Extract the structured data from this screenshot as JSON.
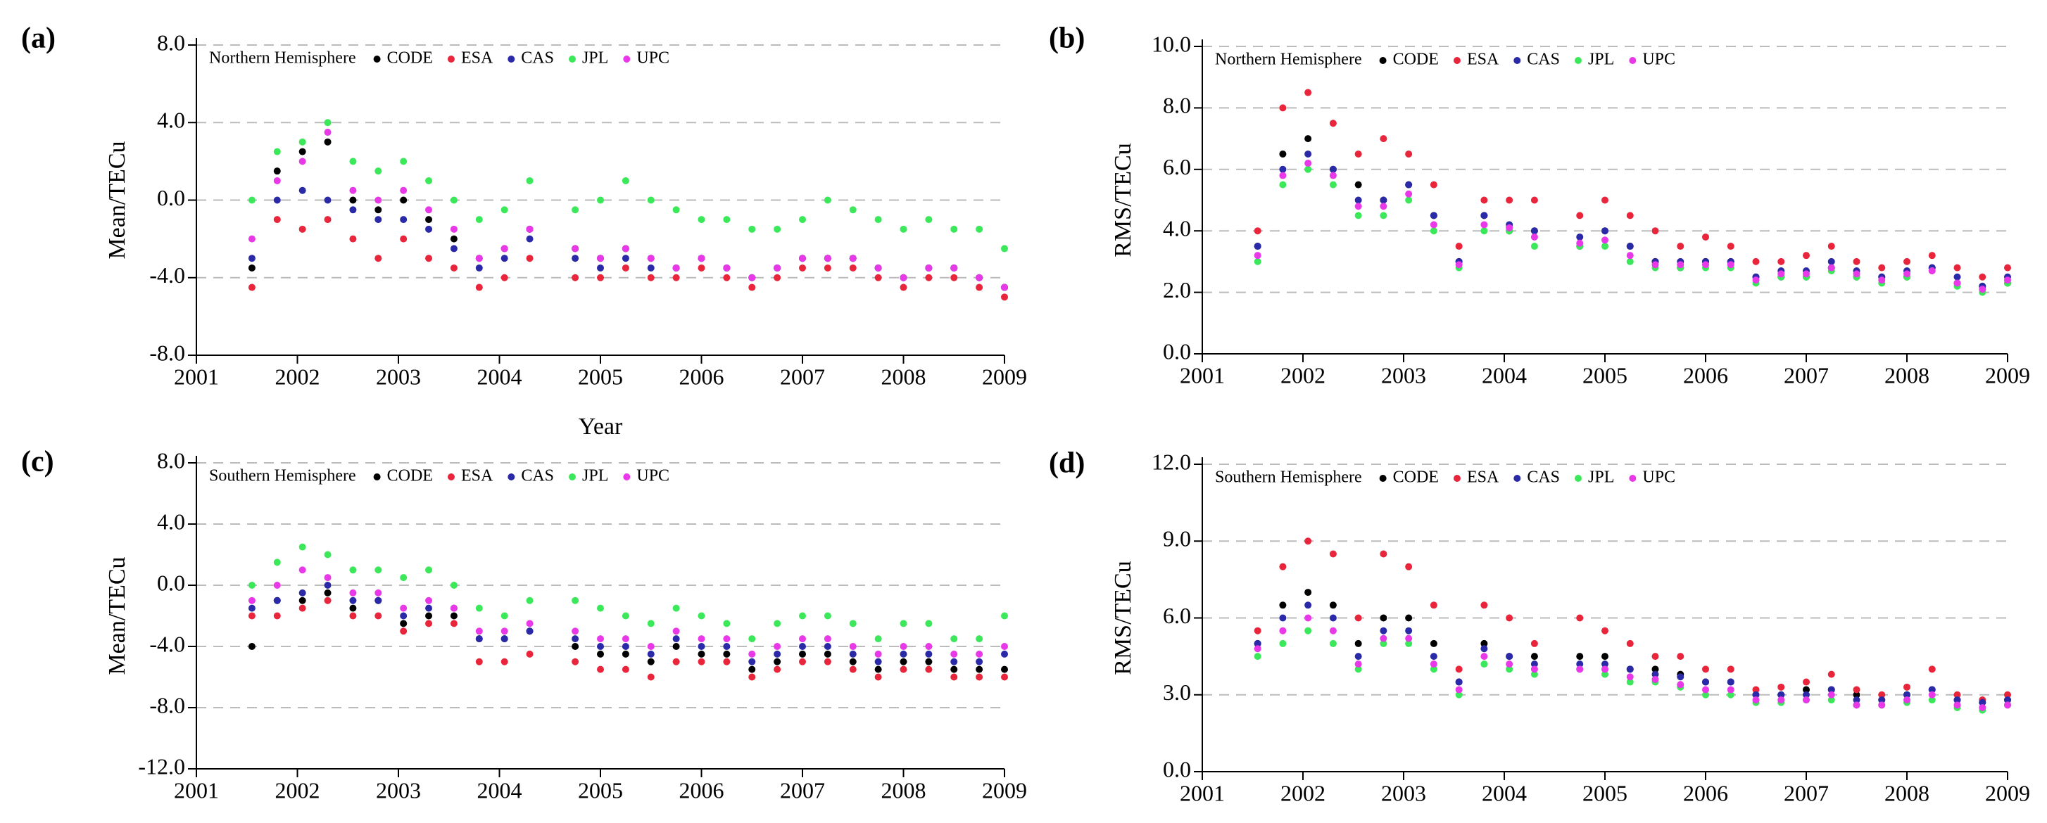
{
  "chart_data": [
    {
      "type": "scatter",
      "panel": "(a)",
      "title": "Northern Hemisphere",
      "y_label": "Mean/TECu",
      "x_label": "Year",
      "x": [
        2001.55,
        2001.8,
        2002.05,
        2002.3,
        2002.55,
        2002.8,
        2003.05,
        2003.3,
        2003.55,
        2003.8,
        2004.05,
        2004.3,
        2004.75,
        2005.0,
        2005.25,
        2005.5,
        2005.75,
        2006.0,
        2006.25,
        2006.5,
        2006.75,
        2007.0,
        2007.25,
        2007.5,
        2007.75,
        2008.0,
        2008.25,
        2008.5,
        2008.75,
        2009.0
      ],
      "series": [
        {
          "name": "CODE",
          "color": "#000000",
          "values": [
            -3.5,
            1.5,
            2.5,
            3,
            0,
            -0.5,
            0,
            -1,
            -2,
            -3,
            -2.5,
            -1.5,
            -2.5,
            -3,
            -2.5,
            -3,
            -3.5,
            -3,
            -3.5,
            -4,
            -3.5,
            -3,
            -3,
            -3,
            -3.5,
            -4,
            -3.5,
            -3.5,
            -4,
            -4.5
          ]
        },
        {
          "name": "ESA",
          "color": "#e8253b",
          "values": [
            -4.5,
            -1,
            -1.5,
            -1,
            -2,
            -3,
            -2,
            -3,
            -3.5,
            -4.5,
            -4,
            -3,
            -4,
            -4,
            -3.5,
            -4,
            -4,
            -3.5,
            -4,
            -4.5,
            -4,
            -3.5,
            -3.5,
            -3.5,
            -4,
            -4.5,
            -4,
            -4,
            -4.5,
            -5
          ]
        },
        {
          "name": "CAS",
          "color": "#2a2aa8",
          "values": [
            -3,
            0,
            0.5,
            0,
            -0.5,
            -1,
            -1,
            -1.5,
            -2.5,
            -3.5,
            -3,
            -2,
            -3,
            -3.5,
            -3,
            -3.5,
            -3.5,
            -3,
            -3.5,
            -4,
            -3.5,
            -3,
            -3,
            -3,
            -3.5,
            -4,
            -3.5,
            -3.5,
            -4,
            -4.5
          ]
        },
        {
          "name": "JPL",
          "color": "#3be85a",
          "values": [
            0,
            2.5,
            3,
            4,
            2,
            1.5,
            2,
            1,
            0,
            -1,
            -0.5,
            1,
            -0.5,
            0,
            1,
            0,
            -0.5,
            -1,
            -1,
            -1.5,
            -1.5,
            -1,
            0,
            -0.5,
            -1,
            -1.5,
            -1,
            -1.5,
            -1.5,
            -2.5
          ]
        },
        {
          "name": "UPC",
          "color": "#e838e8",
          "values": [
            -2,
            1,
            2,
            3.5,
            0.5,
            0,
            0.5,
            -0.5,
            -1.5,
            -3,
            -2.5,
            -1.5,
            -2.5,
            -3,
            -2.5,
            -3,
            -3.5,
            -3,
            -3.5,
            -4,
            -3.5,
            -3,
            -3,
            -3,
            -3.5,
            -4,
            -3.5,
            -3.5,
            -4,
            -4.5
          ]
        }
      ],
      "xlim": [
        2001,
        2009
      ],
      "xticks": [
        2001,
        2002,
        2003,
        2004,
        2005,
        2006,
        2007,
        2008,
        2009
      ],
      "ylim": [
        -8,
        8
      ],
      "yticks": [
        {
          "value": 8,
          "label": "8.0"
        },
        {
          "value": 4,
          "label": "4.0"
        },
        {
          "value": 0,
          "label": "0.0"
        },
        {
          "value": -4,
          "label": "-4.0"
        },
        {
          "value": -8,
          "label": "-8.0"
        }
      ],
      "grid": true
    },
    {
      "type": "scatter",
      "panel": "(b)",
      "title": "Northern Hemisphere",
      "y_label": "RMS/TECu",
      "x": [
        2001.55,
        2001.8,
        2002.05,
        2002.3,
        2002.55,
        2002.8,
        2003.05,
        2003.3,
        2003.55,
        2003.8,
        2004.05,
        2004.3,
        2004.75,
        2005.0,
        2005.25,
        2005.5,
        2005.75,
        2006.0,
        2006.25,
        2006.5,
        2006.75,
        2007.0,
        2007.25,
        2007.5,
        2007.75,
        2008.0,
        2008.25,
        2008.5,
        2008.75,
        2009.0
      ],
      "series": [
        {
          "name": "CODE",
          "color": "#000000",
          "values": [
            3.5,
            6.5,
            7,
            6,
            5.5,
            5,
            5.5,
            4.5,
            3,
            4.5,
            4,
            4,
            3.5,
            4,
            3.5,
            3,
            2.8,
            3,
            3,
            2.5,
            2.5,
            2.5,
            2.8,
            2.5,
            2.5,
            2.5,
            2.8,
            2.3,
            2.2,
            2.3
          ]
        },
        {
          "name": "ESA",
          "color": "#e8253b",
          "values": [
            4,
            8,
            8.5,
            7.5,
            6.5,
            7,
            6.5,
            5.5,
            3.5,
            5,
            5,
            5,
            4.5,
            5,
            4.5,
            4,
            3.5,
            3.8,
            3.5,
            3,
            3,
            3.2,
            3.5,
            3,
            2.8,
            3,
            3.2,
            2.8,
            2.5,
            2.8
          ]
        },
        {
          "name": "CAS",
          "color": "#2a2aa8",
          "values": [
            3.5,
            6,
            6.5,
            6,
            5,
            5,
            5.5,
            4.5,
            3,
            4.5,
            4.2,
            4,
            3.8,
            4,
            3.5,
            3,
            3,
            3,
            3,
            2.5,
            2.7,
            2.7,
            3,
            2.7,
            2.5,
            2.7,
            2.8,
            2.5,
            2.2,
            2.5
          ]
        },
        {
          "name": "JPL",
          "color": "#3be85a",
          "values": [
            3,
            5.5,
            6,
            5.5,
            4.5,
            4.5,
            5,
            4,
            2.8,
            4,
            4,
            3.5,
            3.5,
            3.5,
            3,
            2.8,
            2.8,
            2.8,
            2.8,
            2.3,
            2.5,
            2.5,
            2.7,
            2.5,
            2.3,
            2.5,
            2.7,
            2.2,
            2,
            2.3
          ]
        },
        {
          "name": "UPC",
          "color": "#e838e8",
          "values": [
            3.2,
            5.8,
            6.2,
            5.8,
            4.8,
            4.8,
            5.2,
            4.2,
            2.9,
            4.2,
            4.1,
            3.8,
            3.6,
            3.7,
            3.2,
            2.9,
            2.9,
            2.9,
            2.9,
            2.4,
            2.6,
            2.6,
            2.8,
            2.6,
            2.4,
            2.6,
            2.7,
            2.3,
            2.1,
            2.4
          ]
        }
      ],
      "xlim": [
        2001,
        2009
      ],
      "xticks": [
        2001,
        2002,
        2003,
        2004,
        2005,
        2006,
        2007,
        2008,
        2009
      ],
      "ylim": [
        0,
        10
      ],
      "yticks": [
        {
          "value": 0,
          "label": "0.0"
        },
        {
          "value": 2,
          "label": "2.0"
        },
        {
          "value": 4,
          "label": "4.0"
        },
        {
          "value": 6,
          "label": "6.0"
        },
        {
          "value": 8,
          "label": "8.0"
        },
        {
          "value": 10,
          "label": "10.0"
        }
      ],
      "grid": true
    },
    {
      "type": "scatter",
      "panel": "(c)",
      "title": "Southern Hemisphere",
      "y_label": "Mean/TECu",
      "x": [
        2001.55,
        2001.8,
        2002.05,
        2002.3,
        2002.55,
        2002.8,
        2003.05,
        2003.3,
        2003.55,
        2003.8,
        2004.05,
        2004.3,
        2004.75,
        2005.0,
        2005.25,
        2005.5,
        2005.75,
        2006.0,
        2006.25,
        2006.5,
        2006.75,
        2007.0,
        2007.25,
        2007.5,
        2007.75,
        2008.0,
        2008.25,
        2008.5,
        2008.75,
        2009.0
      ],
      "series": [
        {
          "name": "CODE",
          "color": "#000000",
          "values": [
            -4,
            -1,
            -1,
            -0.5,
            -1.5,
            -1,
            -2.5,
            -2,
            -2,
            -3.5,
            -3.5,
            -3,
            -4,
            -4.5,
            -4.5,
            -5,
            -4,
            -4.5,
            -4.5,
            -5.5,
            -5,
            -4.5,
            -4.5,
            -5,
            -5.5,
            -5,
            -5,
            -5.5,
            -5.5,
            -5.5
          ]
        },
        {
          "name": "ESA",
          "color": "#e8253b",
          "values": [
            -2,
            -2,
            -1.5,
            -1,
            -2,
            -2,
            -3,
            -2.5,
            -2.5,
            -5,
            -5,
            -4.5,
            -5,
            -5.5,
            -5.5,
            -6,
            -5,
            -5,
            -5,
            -6,
            -5.5,
            -5,
            -5,
            -5.5,
            -6,
            -5.5,
            -5.5,
            -6,
            -6,
            -6
          ]
        },
        {
          "name": "CAS",
          "color": "#2a2aa8",
          "values": [
            -1.5,
            -1,
            -0.5,
            0,
            -1,
            -1,
            -2,
            -1.5,
            -1.5,
            -3.5,
            -3.5,
            -3,
            -3.5,
            -4,
            -4,
            -4.5,
            -3.5,
            -4,
            -4,
            -5,
            -4.5,
            -4,
            -4,
            -4.5,
            -5,
            -4.5,
            -4.5,
            -5,
            -5,
            -4.5
          ]
        },
        {
          "name": "JPL",
          "color": "#3be85a",
          "values": [
            0,
            1.5,
            2.5,
            2,
            1,
            1,
            0.5,
            1,
            0,
            -1.5,
            -2,
            -1,
            -1,
            -1.5,
            -2,
            -2.5,
            -1.5,
            -2,
            -2.5,
            -3.5,
            -2.5,
            -2,
            -2,
            -2.5,
            -3.5,
            -2.5,
            -2.5,
            -3.5,
            -3.5,
            -2
          ]
        },
        {
          "name": "UPC",
          "color": "#e838e8",
          "values": [
            -1,
            0,
            1,
            0.5,
            -0.5,
            -0.5,
            -1.5,
            -1,
            -1.5,
            -3,
            -3,
            -2.5,
            -3,
            -3.5,
            -3.5,
            -4,
            -3,
            -3.5,
            -3.5,
            -4.5,
            -4,
            -3.5,
            -3.5,
            -4,
            -4.5,
            -4,
            -4,
            -4.5,
            -4.5,
            -4
          ]
        }
      ],
      "xlim": [
        2001,
        2009
      ],
      "xticks": [
        2001,
        2002,
        2003,
        2004,
        2005,
        2006,
        2007,
        2008,
        2009
      ],
      "ylim": [
        -12,
        8
      ],
      "yticks": [
        {
          "value": 8,
          "label": "8.0"
        },
        {
          "value": 4,
          "label": "4.0"
        },
        {
          "value": 0,
          "label": "0.0"
        },
        {
          "value": -4,
          "label": "-4.0"
        },
        {
          "value": -8,
          "label": "-8.0"
        },
        {
          "value": -12,
          "label": "-12.0"
        }
      ],
      "grid": true
    },
    {
      "type": "scatter",
      "panel": "(d)",
      "title": "Southern Hemisphere",
      "y_label": "RMS/TECu",
      "x": [
        2001.55,
        2001.8,
        2002.05,
        2002.3,
        2002.55,
        2002.8,
        2003.05,
        2003.3,
        2003.55,
        2003.8,
        2004.05,
        2004.3,
        2004.75,
        2005.0,
        2005.25,
        2005.5,
        2005.75,
        2006.0,
        2006.25,
        2006.5,
        2006.75,
        2007.0,
        2007.25,
        2007.5,
        2007.75,
        2008.0,
        2008.25,
        2008.5,
        2008.75,
        2009.0
      ],
      "series": [
        {
          "name": "CODE",
          "color": "#000000",
          "values": [
            5,
            6.5,
            7,
            6.5,
            5,
            6,
            6,
            5,
            3.5,
            5,
            4.5,
            4.5,
            4.5,
            4.5,
            4,
            4,
            3.8,
            3.5,
            3.5,
            3,
            3,
            3.2,
            3.2,
            3,
            2.8,
            3,
            3.2,
            2.8,
            2.7,
            2.8
          ]
        },
        {
          "name": "ESA",
          "color": "#e8253b",
          "values": [
            5.5,
            8,
            9,
            8.5,
            6,
            8.5,
            8,
            6.5,
            4,
            6.5,
            6,
            5,
            6,
            5.5,
            5,
            4.5,
            4.5,
            4,
            4,
            3.2,
            3.3,
            3.5,
            3.8,
            3.2,
            3,
            3.3,
            4,
            3,
            2.8,
            3
          ]
        },
        {
          "name": "CAS",
          "color": "#2a2aa8",
          "values": [
            5,
            6,
            6.5,
            6,
            4.5,
            5.5,
            5.5,
            4.5,
            3.5,
            4.8,
            4.5,
            4.2,
            4.2,
            4.2,
            4,
            3.8,
            3.7,
            3.5,
            3.5,
            3,
            3,
            3,
            3.2,
            2.8,
            2.8,
            3,
            3.2,
            2.8,
            2.7,
            2.8
          ]
        },
        {
          "name": "JPL",
          "color": "#3be85a",
          "values": [
            4.5,
            5,
            5.5,
            5,
            4,
            5,
            5,
            4,
            3,
            4.2,
            4,
            3.8,
            4,
            3.8,
            3.5,
            3.5,
            3.3,
            3,
            3,
            2.7,
            2.7,
            2.8,
            2.8,
            2.6,
            2.6,
            2.7,
            2.8,
            2.5,
            2.4,
            2.6
          ]
        },
        {
          "name": "UPC",
          "color": "#e838e8",
          "values": [
            4.8,
            5.5,
            6,
            5.5,
            4.2,
            5.2,
            5.2,
            4.2,
            3.2,
            4.5,
            4.2,
            4,
            4,
            4,
            3.7,
            3.6,
            3.4,
            3.2,
            3.2,
            2.8,
            2.8,
            2.8,
            3,
            2.6,
            2.6,
            2.8,
            3,
            2.6,
            2.5,
            2.6
          ]
        }
      ],
      "xlim": [
        2001,
        2009
      ],
      "xticks": [
        2001,
        2002,
        2003,
        2004,
        2005,
        2006,
        2007,
        2008,
        2009
      ],
      "ylim": [
        0,
        12
      ],
      "yticks": [
        {
          "value": 0,
          "label": "0.0"
        },
        {
          "value": 3,
          "label": "3.0"
        },
        {
          "value": 6,
          "label": "6.0"
        },
        {
          "value": 9,
          "label": "9.0"
        },
        {
          "value": 12,
          "label": "12.0"
        }
      ],
      "grid": true
    }
  ]
}
